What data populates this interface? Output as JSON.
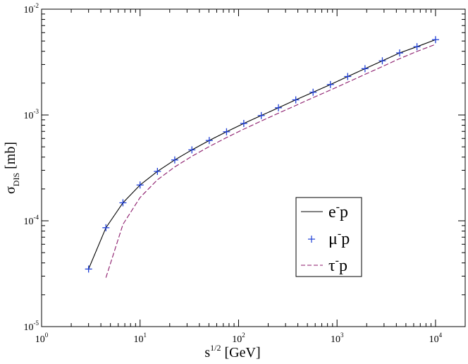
{
  "chart_data": {
    "type": "line",
    "xscale": "log",
    "yscale": "log",
    "xlim": [
      1,
      20000
    ],
    "ylim": [
      1e-05,
      0.01
    ],
    "grid": false,
    "legend_position": "lower-right",
    "x_ticks": [
      {
        "value": 1,
        "base": "10",
        "exp": "0"
      },
      {
        "value": 10,
        "base": "10",
        "exp": "1"
      },
      {
        "value": 100,
        "base": "10",
        "exp": "2"
      },
      {
        "value": 1000,
        "base": "10",
        "exp": "3"
      },
      {
        "value": 10000,
        "base": "10",
        "exp": "4"
      }
    ],
    "y_ticks": [
      {
        "value": 1e-05,
        "base": "10",
        "exp": "-5"
      },
      {
        "value": 0.0001,
        "base": "10",
        "exp": "-4"
      },
      {
        "value": 0.001,
        "base": "10",
        "exp": "-3"
      },
      {
        "value": 0.01,
        "base": "10",
        "exp": "-2"
      }
    ],
    "xlabel": {
      "main": "s",
      "sup": "1/2",
      "unit": " [GeV]"
    },
    "ylabel": {
      "main": "σ",
      "sub": "DIS",
      "unit": " [mb]"
    },
    "series": [
      {
        "name": "e-p",
        "legend": {
          "base": "e",
          "sup": "-",
          "rest": "p"
        },
        "style": "solid",
        "color": "#000000",
        "marker": "none",
        "x": [
          3,
          4.5,
          6.7,
          10,
          15,
          22.5,
          33.6,
          50.4,
          75.5,
          113,
          170,
          254,
          381,
          571,
          856,
          1283,
          1923,
          2883,
          4323,
          6480,
          10000
        ],
        "y": [
          3.5e-05,
          8.6e-05,
          0.000148,
          0.000218,
          0.000293,
          0.000376,
          0.000468,
          0.000574,
          0.000694,
          0.000832,
          0.000988,
          0.00117,
          0.00139,
          0.00164,
          0.00194,
          0.00231,
          0.00274,
          0.00325,
          0.00386,
          0.00442,
          0.00515
        ]
      },
      {
        "name": "μ-p",
        "legend": {
          "base": "μ",
          "sup": "-",
          "rest": "p"
        },
        "style": "markers",
        "color": "#1f3fd6",
        "marker": "plus",
        "x": [
          3,
          4.5,
          6.7,
          10,
          15,
          22.5,
          33.6,
          50.4,
          75.5,
          113,
          170,
          254,
          381,
          571,
          856,
          1283,
          1923,
          2883,
          4323,
          6480,
          10000
        ],
        "y": [
          3.5e-05,
          8.6e-05,
          0.000148,
          0.000218,
          0.000293,
          0.000376,
          0.000468,
          0.000574,
          0.000694,
          0.000832,
          0.000988,
          0.00117,
          0.00139,
          0.00164,
          0.00194,
          0.00231,
          0.00274,
          0.00325,
          0.00386,
          0.00442,
          0.00515
        ]
      },
      {
        "name": "τ-p",
        "legend": {
          "base": "τ",
          "sup": "-",
          "rest": "p"
        },
        "style": "dashed",
        "color": "#8b1a6b",
        "marker": "none",
        "x": [
          4.5,
          6.7,
          10,
          15,
          22.5,
          33.6,
          50.4,
          75.5,
          113,
          170,
          254,
          381,
          571,
          856,
          1283,
          1923,
          2883,
          4323,
          6480,
          10000
        ],
        "y": [
          2.9e-05,
          9.25e-05,
          0.000166,
          0.000244,
          0.000323,
          0.000407,
          0.000503,
          0.000612,
          0.000735,
          0.000877,
          0.00104,
          0.00123,
          0.00146,
          0.00172,
          0.00204,
          0.00242,
          0.00287,
          0.00341,
          0.00399,
          0.00465
        ]
      }
    ]
  }
}
